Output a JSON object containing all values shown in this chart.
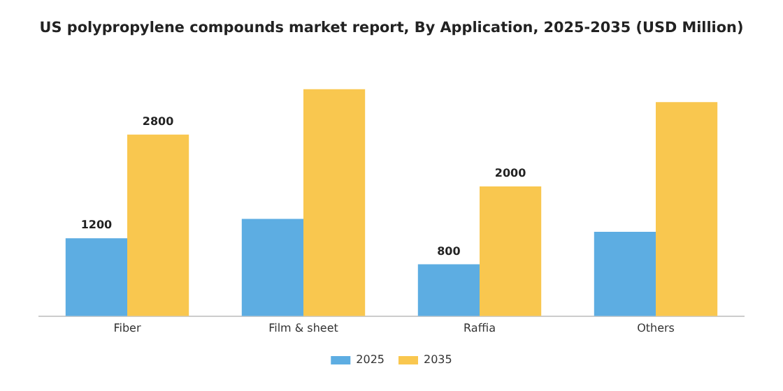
{
  "chart_data": {
    "type": "bar",
    "title": "US polypropylene compounds market report, By Application, 2025-2035 (USD Million)",
    "categories": [
      "Fiber",
      "Film & sheet",
      "Raffia",
      "Others"
    ],
    "series": [
      {
        "name": "2025",
        "color": "#5dade2",
        "values": [
          1200,
          1500,
          800,
          1300
        ],
        "value_labels": [
          "1200",
          null,
          "800",
          null
        ]
      },
      {
        "name": "2035",
        "color": "#f9c74f",
        "values": [
          2800,
          3500,
          2000,
          3300
        ],
        "value_labels": [
          "2800",
          null,
          "2000",
          null
        ]
      }
    ],
    "grid": false,
    "legend": "bottom"
  }
}
